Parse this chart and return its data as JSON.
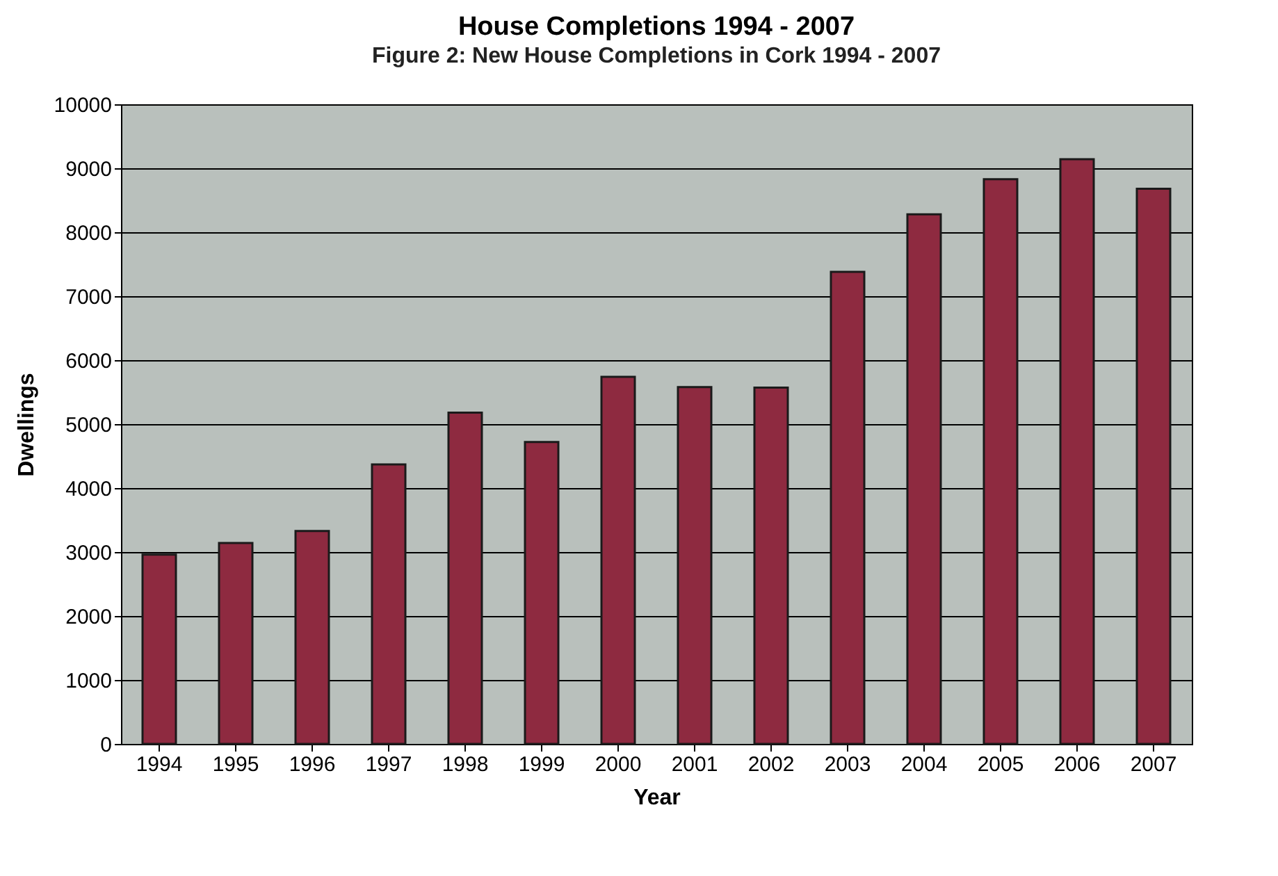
{
  "chart_data": {
    "type": "bar",
    "title": "House Completions 1994 - 2007",
    "xlabel": "Year",
    "ylabel": "Dwellings",
    "annotations": [
      "Figure 2: New House Completions in Cork 1994 - 2007"
    ],
    "categories": [
      "1994",
      "1995",
      "1996",
      "1997",
      "1998",
      "1999",
      "2000",
      "2001",
      "2002",
      "2003",
      "2004",
      "2005",
      "2006",
      "2007"
    ],
    "values": [
      2960,
      3140,
      3330,
      4370,
      5180,
      4720,
      5740,
      5580,
      5570,
      7380,
      8280,
      8830,
      9140,
      8680
    ],
    "color": "#8e2a40",
    "ylim": [
      0,
      10000
    ],
    "yticks": [
      0,
      1000,
      2000,
      3000,
      4000,
      5000,
      6000,
      7000,
      8000,
      9000,
      10000
    ],
    "grid": "y"
  }
}
